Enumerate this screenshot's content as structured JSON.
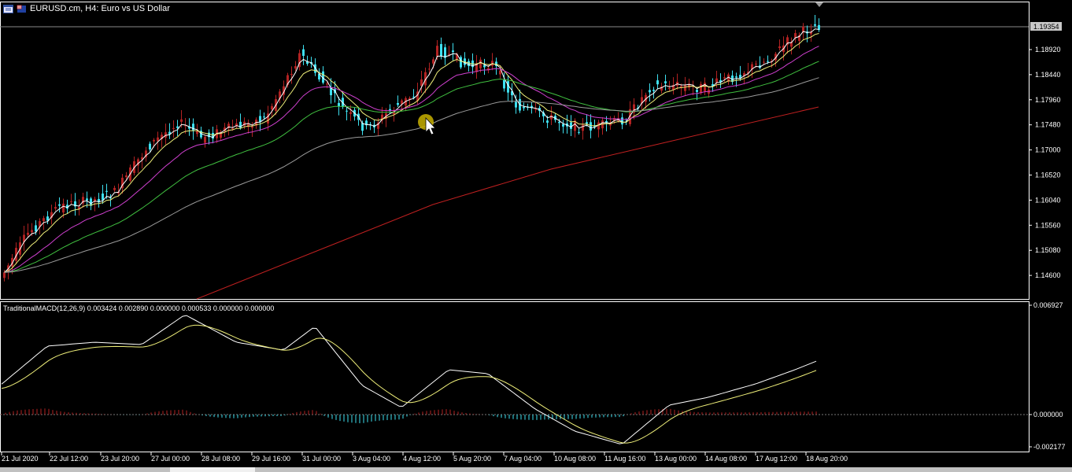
{
  "window": {
    "title": "EURUSD.cm, H4:  Euro vs US Dollar",
    "colors": {
      "background": "#000000",
      "bull_candle": "#b22222",
      "bear_candle": "#3ee0f0",
      "grid": "#ffffff"
    }
  },
  "price_panel": {
    "current_price": "1.19354",
    "scale_labels": [
      "1.18920",
      "1.18440",
      "1.17960",
      "1.17480",
      "1.17000",
      "1.16520",
      "1.16040",
      "1.15560",
      "1.15080",
      "1.14600"
    ],
    "ma_colors": [
      "#ffffff",
      "#f0f07a",
      "#d040d0",
      "#40c040",
      "#9a9a9a",
      "#c02020"
    ]
  },
  "macd_panel": {
    "label": "TraditionalMACD(12,26,9) 0.003424 0.002890 0.000000 0.000533 0.000000 0.000000",
    "scale_labels": [
      "0.006927",
      "0.000000",
      "-0.002177"
    ],
    "colors": {
      "macd": "#ffffff",
      "signal": "#f0f07a",
      "hist_pos": "#b22222",
      "hist_neg": "#3ee0f0"
    }
  },
  "time_axis": {
    "labels": [
      "21 Jul 2020",
      "22 Jul 12:00",
      "23 Jul 20:00",
      "27 Jul 00:00",
      "28 Jul 08:00",
      "29 Jul 16:00",
      "31 Jul 00:00",
      "3 Aug 04:00",
      "4 Aug 12:00",
      "5 Aug 20:00",
      "7 Aug 04:00",
      "10 Aug 08:00",
      "11 Aug 16:00",
      "13 Aug 00:00",
      "14 Aug 08:00",
      "17 Aug 12:00",
      "18 Aug 20:00"
    ]
  },
  "cursor": {
    "icon": "arrow-cursor-icon"
  }
}
